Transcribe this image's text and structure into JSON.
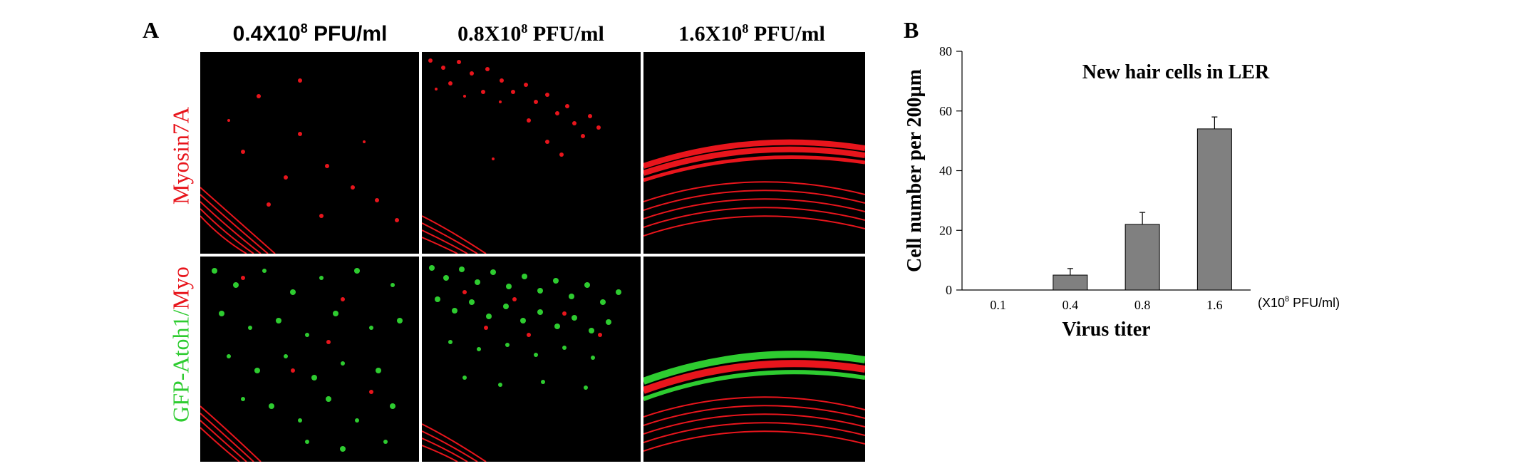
{
  "panel_a": {
    "letter": "A",
    "column_headers": [
      {
        "main": "0.4X10",
        "exp": "8",
        "unit": " PFU/ml"
      },
      {
        "main": "0.8X10",
        "exp": "8",
        "unit": " PFU/ml"
      },
      {
        "main": "1.6X10",
        "exp": "8",
        "unit": " PFU/ml"
      }
    ],
    "row_label_top": "Myosin7A",
    "row_label_bottom": {
      "part1": "GFP-Atoh1/",
      "part2": "Myo"
    },
    "colors": {
      "myosin": "#e8151c",
      "gfp": "#2ecc30",
      "background": "#000000"
    }
  },
  "panel_b": {
    "letter": "B"
  },
  "chart_data": {
    "type": "bar",
    "title": "New hair cells in LER",
    "xlabel": "Virus titer",
    "ylabel": "Cell number per 200µm",
    "x_unit": {
      "prefix": "(X10",
      "exp": "8",
      "suffix": " PFU/ml)"
    },
    "categories": [
      "0.1",
      "0.4",
      "0.8",
      "1.6"
    ],
    "values": [
      0,
      5,
      22,
      54
    ],
    "errors": [
      0,
      2.2,
      4,
      4
    ],
    "ylim": [
      0,
      80
    ],
    "yticks": [
      0,
      20,
      40,
      60,
      80
    ],
    "bar_color": "#808080",
    "grid": false,
    "legend": "none"
  }
}
